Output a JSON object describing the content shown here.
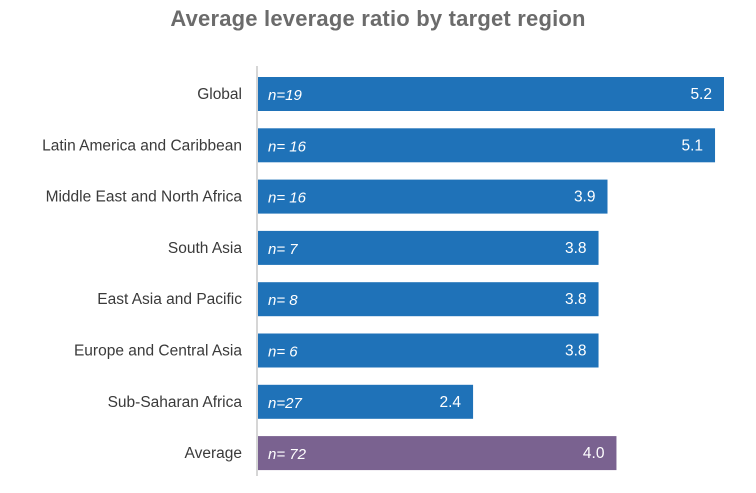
{
  "chart_data": {
    "type": "bar",
    "orientation": "horizontal",
    "title": "Average leverage ratio by target region",
    "xlabel": "",
    "ylabel": "",
    "xlim": [
      0,
      5.2
    ],
    "grid": false,
    "categories": [
      "Global",
      "Latin America and Caribbean",
      "Middle East and North Africa",
      "South Asia",
      "East Asia and Pacific",
      "Europe and Central Asia",
      "Sub-Saharan Africa",
      "Average"
    ],
    "values": [
      5.2,
      5.1,
      3.9,
      3.8,
      3.8,
      3.8,
      2.4,
      4.0
    ],
    "value_labels": [
      "5.2",
      "5.1",
      "3.9",
      "3.8",
      "3.8",
      "3.8",
      "2.4",
      "4.0"
    ],
    "n_labels": [
      "n=19",
      "n= 16",
      "n= 16",
      "n= 7",
      "n= 8",
      "n= 6",
      "n=27",
      "n= 72"
    ],
    "colors": {
      "region": "#1f72b8",
      "average": "#7a6290",
      "axis": "#c8c8c8"
    }
  }
}
